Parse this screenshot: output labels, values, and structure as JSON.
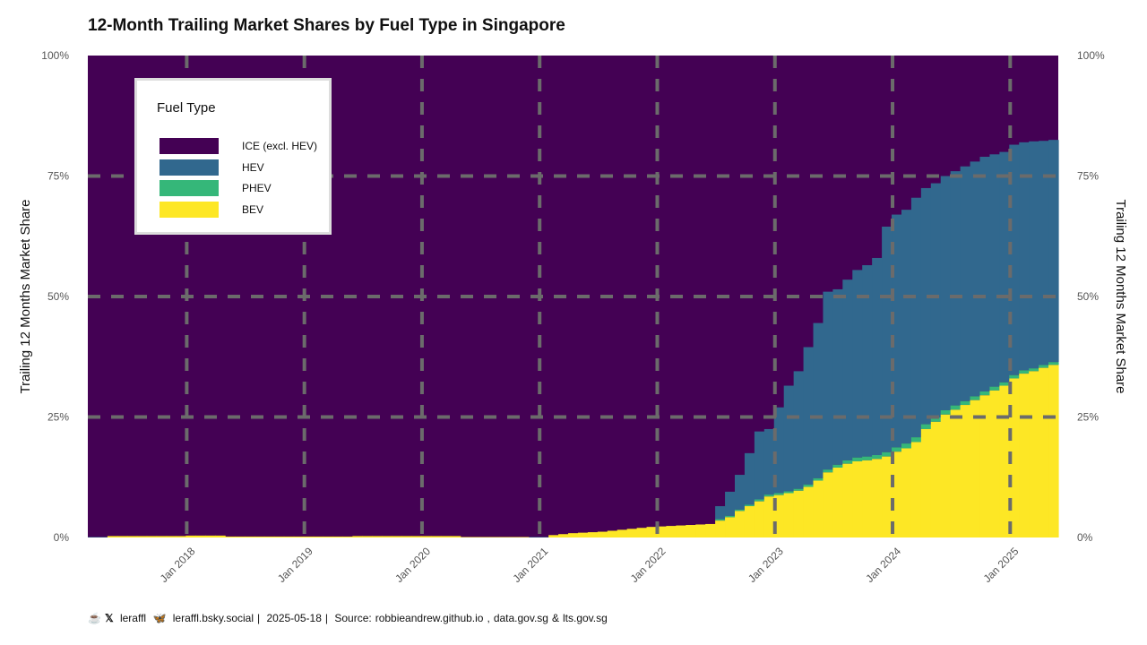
{
  "colors": {
    "ice": "#440154",
    "hev": "#31688e",
    "phev": "#35b779",
    "bev": "#fde725",
    "grid": "#6b6b6b"
  },
  "footer": {
    "coffee_icon": "coffee-icon",
    "x_icon": "x-logo-icon",
    "handle": "leraffl",
    "bluesky_icon": "butterfly-icon",
    "bluesky": "leraffl.bsky.social",
    "sep1": "|",
    "date": "2025-05-18",
    "sep2": "|",
    "source_label": "Source:",
    "source": "robbieandrew.github.io",
    "comma": ",",
    "source2": "data.gov.sg",
    "amp": "&",
    "source3": "lts.gov.sg"
  },
  "chart_data": {
    "type": "area",
    "title": "12-Month Trailing Market Shares by Fuel Type in Singapore",
    "ylabel": "Trailing 12 Months Market Share",
    "ylabel_right": "Trailing 12 Months Market Share",
    "xlabel": "",
    "ylim": [
      0,
      100
    ],
    "yticks": [
      "0%",
      "25%",
      "50%",
      "75%",
      "100%"
    ],
    "xticks": [
      "Jan 2018",
      "Jan 2019",
      "Jan 2020",
      "Jan 2021",
      "Jan 2022",
      "Jan 2023",
      "Jan 2024",
      "Jan 2025"
    ],
    "x_start": "2017-03",
    "x_end": "2025-04",
    "grid": true,
    "legend_title": "Fuel Type",
    "legend_position": "top-left",
    "series": [
      {
        "name": "ICE (excl. HEV)",
        "key": "ice"
      },
      {
        "name": "HEV",
        "key": "hev"
      },
      {
        "name": "PHEV",
        "key": "phev"
      },
      {
        "name": "BEV",
        "key": "bev"
      }
    ],
    "stacked_top_hev": [
      0.1,
      0.1,
      0.1,
      0.1,
      0.1,
      0.1,
      0.1,
      0.1,
      0.1,
      0.1,
      0.1,
      0.1,
      0.1,
      0.1,
      0.1,
      0.1,
      0.1,
      0.1,
      0.1,
      0.1,
      0.1,
      0.1,
      0.1,
      0.1,
      0.1,
      0.1,
      0.1,
      0.1,
      0.1,
      0.1,
      0.1,
      0.1,
      0.1,
      0.1,
      0.1,
      0.1,
      0.1,
      0.1,
      0.1,
      0.1,
      0.1,
      0.1,
      0.1,
      0.1,
      0.1,
      0.1,
      0.1,
      0.1,
      0.1,
      0.1,
      0.1,
      0.1,
      0.1,
      0.1,
      0.1,
      0.1,
      0.1,
      0.1,
      0.1,
      0.1,
      0.1,
      0.1,
      0.1,
      0.1,
      6.5,
      9.5,
      13,
      17.5,
      22,
      22.5,
      27,
      31.5,
      34.5,
      39.5,
      44.5,
      51,
      51.5,
      53.5,
      55.5,
      56.5,
      58,
      64.5,
      67,
      68,
      70.5,
      72.5,
      73.5,
      75,
      76,
      77,
      78,
      79,
      79.5,
      80,
      81.5,
      82,
      82.2,
      82.3,
      82.5
    ],
    "bev": [
      0,
      0,
      0.3,
      0.3,
      0.3,
      0.3,
      0.3,
      0.3,
      0.3,
      0.3,
      0.4,
      0.4,
      0.4,
      0.4,
      0.2,
      0.2,
      0.2,
      0.2,
      0.2,
      0.2,
      0.2,
      0.2,
      0.2,
      0.2,
      0.2,
      0.2,
      0.2,
      0.3,
      0.3,
      0.3,
      0.3,
      0.3,
      0.3,
      0.3,
      0.3,
      0.3,
      0.3,
      0.3,
      0.1,
      0.1,
      0.1,
      0.1,
      0.1,
      0.1,
      0.1,
      0.0,
      0.0,
      0.5,
      0.7,
      0.9,
      1.0,
      1.1,
      1.2,
      1.4,
      1.6,
      1.8,
      2.0,
      2.2,
      2.3,
      2.4,
      2.5,
      2.6,
      2.7,
      2.8,
      3.5,
      4.2,
      5.5,
      6.5,
      7.5,
      8.5,
      8.8,
      9.2,
      9.7,
      10.5,
      11.8,
      13.5,
      14.5,
      15.3,
      15.8,
      16.0,
      16.3,
      16.8,
      17.8,
      18.5,
      19.8,
      22.5,
      24.0,
      25.5,
      26.5,
      27.5,
      28.5,
      29.5,
      30.5,
      31.5,
      33.0,
      34.0,
      34.5,
      35.2,
      35.8
    ],
    "phev": [
      0,
      0,
      0,
      0,
      0,
      0,
      0,
      0,
      0,
      0,
      0,
      0,
      0,
      0,
      0,
      0,
      0,
      0,
      0,
      0,
      0,
      0,
      0,
      0,
      0,
      0,
      0,
      0,
      0,
      0,
      0,
      0,
      0,
      0,
      0,
      0,
      0,
      0,
      0,
      0,
      0,
      0,
      0,
      0,
      0,
      0,
      0,
      0,
      0,
      0,
      0,
      0,
      0,
      0,
      0,
      0,
      0,
      0,
      0,
      0,
      0,
      0,
      0,
      0,
      0.3,
      0.3,
      0.3,
      0.3,
      0.4,
      0.4,
      0.4,
      0.4,
      0.4,
      0.5,
      0.5,
      0.6,
      0.6,
      0.7,
      0.8,
      0.8,
      0.8,
      0.9,
      0.9,
      1.0,
      1.0,
      1.0,
      0.9,
      0.9,
      0.9,
      0.8,
      0.8,
      0.8,
      0.8,
      0.7,
      0.7,
      0.7,
      0.6,
      0.6,
      0.6
    ]
  }
}
